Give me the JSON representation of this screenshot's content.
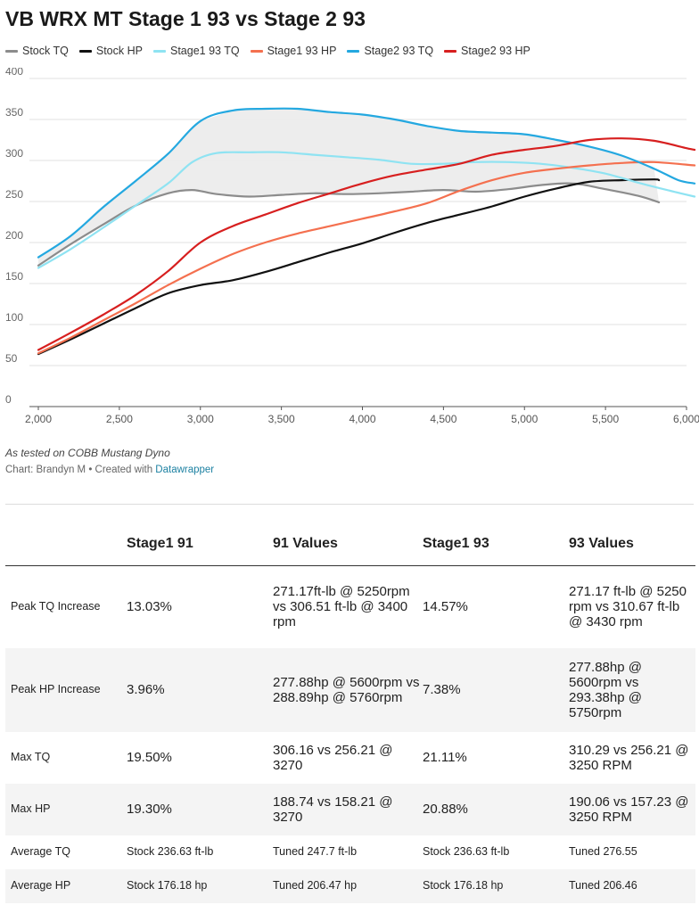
{
  "title": "VB WRX MT Stage 1 93 vs Stage 2 93",
  "note": "As tested on COBB Mustang Dyno",
  "credit_prefix": "Chart: Brandyn M • Created with ",
  "credit_link": "Datawrapper",
  "legend": [
    {
      "name": "Stock TQ",
      "color": "#8c8c8c"
    },
    {
      "name": "Stock HP",
      "color": "#111111"
    },
    {
      "name": "Stage1 93 TQ",
      "color": "#8fe3f2"
    },
    {
      "name": "Stage1 93 HP",
      "color": "#f4704f"
    },
    {
      "name": "Stage2 93 TQ",
      "color": "#24a8e0"
    },
    {
      "name": "Stage2 93 HP",
      "color": "#d71f1f"
    }
  ],
  "chart_data": {
    "type": "line",
    "title": "VB WRX MT Stage 1 93 vs Stage 2 93",
    "xlabel": "",
    "ylabel": "",
    "xlim": [
      2000,
      6000
    ],
    "ylim": [
      0,
      400
    ],
    "x_ticks": [
      "2,000",
      "2,500",
      "3,000",
      "3,500",
      "4,000",
      "4,500",
      "5,000",
      "5,500",
      "6,000"
    ],
    "y_ticks": [
      "0",
      "50",
      "100",
      "150",
      "200",
      "250",
      "300",
      "350",
      "400"
    ],
    "grid": "horizontal",
    "legend_position": "top-left",
    "shaded_band": {
      "between": [
        "Stage2 93 TQ",
        "Stock TQ"
      ],
      "color": "#ebebeb"
    },
    "series": [
      {
        "name": "Stock TQ",
        "color": "#8c8c8c",
        "points": [
          [
            2000,
            172
          ],
          [
            2200,
            198
          ],
          [
            2400,
            222
          ],
          [
            2600,
            245
          ],
          [
            2800,
            260
          ],
          [
            2950,
            264
          ],
          [
            3100,
            259
          ],
          [
            3300,
            256
          ],
          [
            3500,
            258
          ],
          [
            3700,
            260
          ],
          [
            3900,
            259
          ],
          [
            4100,
            260
          ],
          [
            4300,
            262
          ],
          [
            4500,
            264
          ],
          [
            4700,
            262
          ],
          [
            4900,
            265
          ],
          [
            5100,
            270
          ],
          [
            5300,
            272
          ],
          [
            5500,
            265
          ],
          [
            5700,
            257
          ],
          [
            5830,
            249
          ]
        ]
      },
      {
        "name": "Stock HP",
        "color": "#111111",
        "points": [
          [
            2000,
            64
          ],
          [
            2200,
            82
          ],
          [
            2400,
            101
          ],
          [
            2600,
            120
          ],
          [
            2800,
            138
          ],
          [
            3000,
            148
          ],
          [
            3200,
            154
          ],
          [
            3400,
            164
          ],
          [
            3600,
            176
          ],
          [
            3800,
            188
          ],
          [
            4000,
            199
          ],
          [
            4200,
            212
          ],
          [
            4400,
            224
          ],
          [
            4600,
            234
          ],
          [
            4800,
            244
          ],
          [
            5000,
            256
          ],
          [
            5200,
            266
          ],
          [
            5400,
            274
          ],
          [
            5600,
            276
          ],
          [
            5800,
            277
          ],
          [
            5830,
            276
          ]
        ]
      },
      {
        "name": "Stage1 93 TQ",
        "color": "#8fe3f2",
        "points": [
          [
            2000,
            169
          ],
          [
            2200,
            192
          ],
          [
            2400,
            218
          ],
          [
            2600,
            245
          ],
          [
            2800,
            272
          ],
          [
            2950,
            298
          ],
          [
            3100,
            309
          ],
          [
            3300,
            310
          ],
          [
            3500,
            310
          ],
          [
            3700,
            307
          ],
          [
            3900,
            304
          ],
          [
            4100,
            301
          ],
          [
            4300,
            296
          ],
          [
            4500,
            296
          ],
          [
            4700,
            298
          ],
          [
            4900,
            298
          ],
          [
            5100,
            296
          ],
          [
            5300,
            291
          ],
          [
            5500,
            284
          ],
          [
            5700,
            273
          ],
          [
            5900,
            263
          ],
          [
            6050,
            256
          ]
        ]
      },
      {
        "name": "Stage1 93 HP",
        "color": "#f4704f",
        "points": [
          [
            2000,
            65
          ],
          [
            2200,
            84
          ],
          [
            2400,
            105
          ],
          [
            2600,
            126
          ],
          [
            2800,
            148
          ],
          [
            3000,
            168
          ],
          [
            3200,
            186
          ],
          [
            3400,
            200
          ],
          [
            3600,
            211
          ],
          [
            3800,
            220
          ],
          [
            4000,
            229
          ],
          [
            4200,
            238
          ],
          [
            4400,
            248
          ],
          [
            4600,
            263
          ],
          [
            4800,
            276
          ],
          [
            5000,
            285
          ],
          [
            5200,
            290
          ],
          [
            5400,
            294
          ],
          [
            5600,
            297
          ],
          [
            5800,
            298
          ],
          [
            6050,
            294
          ]
        ]
      },
      {
        "name": "Stage2 93 TQ",
        "color": "#24a8e0",
        "points": [
          [
            2000,
            182
          ],
          [
            2200,
            208
          ],
          [
            2400,
            243
          ],
          [
            2600,
            275
          ],
          [
            2800,
            308
          ],
          [
            3000,
            348
          ],
          [
            3200,
            361
          ],
          [
            3400,
            363
          ],
          [
            3600,
            363
          ],
          [
            3800,
            359
          ],
          [
            4000,
            356
          ],
          [
            4200,
            350
          ],
          [
            4400,
            342
          ],
          [
            4600,
            336
          ],
          [
            4800,
            334
          ],
          [
            5000,
            332
          ],
          [
            5200,
            325
          ],
          [
            5400,
            317
          ],
          [
            5600,
            306
          ],
          [
            5800,
            290
          ],
          [
            5950,
            276
          ],
          [
            6050,
            272
          ]
        ]
      },
      {
        "name": "Stage2 93 HP",
        "color": "#d71f1f",
        "points": [
          [
            2000,
            69
          ],
          [
            2200,
            90
          ],
          [
            2400,
            112
          ],
          [
            2600,
            136
          ],
          [
            2800,
            165
          ],
          [
            3000,
            200
          ],
          [
            3200,
            220
          ],
          [
            3400,
            234
          ],
          [
            3600,
            248
          ],
          [
            3800,
            260
          ],
          [
            4000,
            272
          ],
          [
            4200,
            282
          ],
          [
            4400,
            289
          ],
          [
            4600,
            296
          ],
          [
            4800,
            307
          ],
          [
            5000,
            313
          ],
          [
            5200,
            318
          ],
          [
            5400,
            325
          ],
          [
            5600,
            327
          ],
          [
            5800,
            324
          ],
          [
            6000,
            315
          ],
          [
            6050,
            313
          ]
        ]
      }
    ]
  },
  "table": {
    "headers": [
      "",
      "Stage1 91",
      "91 Values",
      "Stage1 93",
      "93 Values"
    ],
    "rows": [
      {
        "label": "Peak TQ Increase",
        "c1": "13.03%",
        "c2": "271.17ft-lb @ 5250rpm vs 306.51 ft-lb @ 3400 rpm",
        "c3": "14.57%",
        "c4": "271.17 ft-lb @ 5250 rpm vs 310.67 ft-lb @ 3430 rpm"
      },
      {
        "label": "Peak HP Increase",
        "c1": "3.96%",
        "c2": "277.88hp @ 5600rpm vs 288.89hp @ 5760rpm",
        "c3": "7.38%",
        "c4": "277.88hp @ 5600rpm vs 293.38hp @ 5750rpm"
      },
      {
        "label": "Max TQ",
        "c1": "19.50%",
        "c2": "306.16 vs 256.21 @ 3270",
        "c3": "21.11%",
        "c4": "310.29 vs 256.21 @ 3250 RPM"
      },
      {
        "label": "Max HP",
        "c1": "19.30%",
        "c2": "188.74 vs 158.21 @ 3270",
        "c3": "20.88%",
        "c4": "190.06 vs 157.23 @ 3250 RPM"
      },
      {
        "label": "Average TQ",
        "c1": "Stock 236.63 ft-lb",
        "c2": "Tuned 247.7 ft-lb",
        "c3": "Stock 236.63 ft-lb",
        "c4": "Tuned 276.55"
      },
      {
        "label": "Average HP",
        "c1": "Stock 176.18 hp",
        "c2": "Tuned 206.47 hp",
        "c3": "Stock 176.18 hp",
        "c4": "Tuned 206.46"
      }
    ]
  }
}
